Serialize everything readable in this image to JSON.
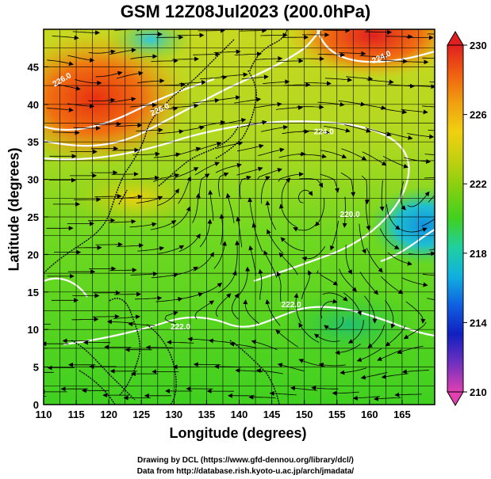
{
  "title": "GSM 12Z08Jul2023 (200.0hPa)",
  "xlabel": "Longitude (degrees)",
  "ylabel": "Latitude  (degrees)",
  "credits": [
    "Drawing by DCL (https://www.gfd-dennou.org/library/dcl/)",
    "Data from http://database.rish.kyoto-u.ac.jp/arch/jmadata/"
  ],
  "map": {
    "lon_range": [
      110,
      170
    ],
    "lat_range": [
      0,
      50
    ],
    "lon_ticks": [
      110,
      115,
      120,
      125,
      130,
      135,
      140,
      145,
      150,
      155,
      160,
      165
    ],
    "lat_ticks": [
      0,
      5,
      10,
      15,
      20,
      25,
      30,
      35,
      40,
      45
    ],
    "grid": true
  },
  "colorbar": {
    "ticks": [
      230,
      226,
      222,
      218,
      214,
      210
    ],
    "min": 210,
    "max": 230,
    "colors": [
      "#e040b0",
      "#7030c0",
      "#1020c0",
      "#1060e0",
      "#10b0e0",
      "#20d0a0",
      "#40d020",
      "#80d010",
      "#c0d010",
      "#f0d010",
      "#f0a010",
      "#f06010",
      "#e02020"
    ]
  },
  "contour_labels": [
    {
      "text": "220.0",
      "lon": 157,
      "lat": 25,
      "rot": 0
    },
    {
      "text": "224.0",
      "lon": 153,
      "lat": 36,
      "rot": 0
    },
    {
      "text": "222.0",
      "lon": 131,
      "lat": 10,
      "rot": 0
    },
    {
      "text": "222.0",
      "lon": 148,
      "lat": 13,
      "rot": 0
    },
    {
      "text": "224.0",
      "lon": 162,
      "lat": 46,
      "rot": -25
    },
    {
      "text": "226.0",
      "lon": 113,
      "lat": 43,
      "rot": -30
    },
    {
      "text": "226.0",
      "lon": 128,
      "lat": 39,
      "rot": -25
    }
  ]
}
